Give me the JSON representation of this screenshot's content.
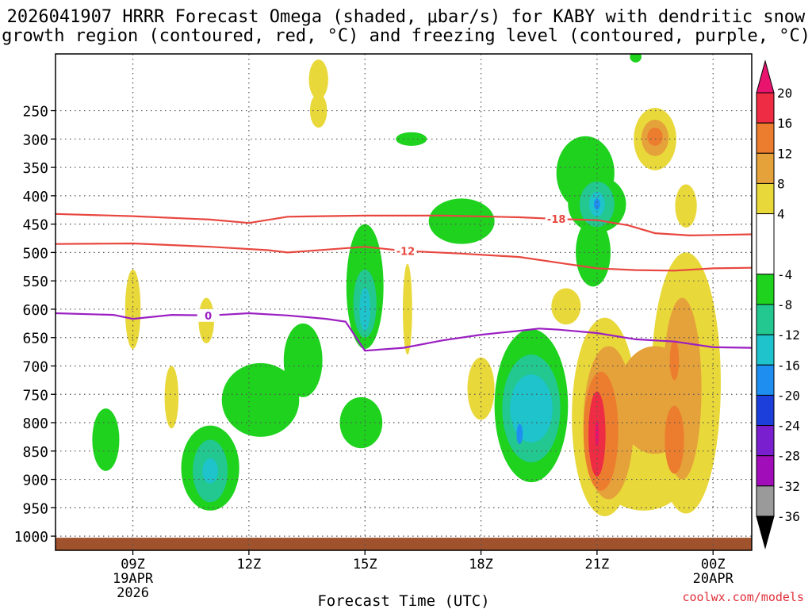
{
  "chart_data": {
    "type": "heatmap",
    "title_line1": "2026041907 HRRR Forecast Omega (shaded, μbar/s) for KABY with dendritic snow",
    "title_line2": "growth region (contoured, red, °C) and freezing level (contoured, purple, °C)",
    "xlabel": "Forecast Time (UTC)",
    "ylabel": "",
    "credit": "coolwx.com/models",
    "x_range_hours": [
      7,
      25
    ],
    "y_range_hpa": [
      1025,
      150
    ],
    "x_ticks": [
      {
        "hour": 9,
        "lines": [
          "09Z",
          "19APR",
          "2026"
        ]
      },
      {
        "hour": 12,
        "lines": [
          "12Z"
        ]
      },
      {
        "hour": 15,
        "lines": [
          "15Z"
        ]
      },
      {
        "hour": 18,
        "lines": [
          "18Z"
        ]
      },
      {
        "hour": 21,
        "lines": [
          "21Z"
        ]
      },
      {
        "hour": 24,
        "lines": [
          "00Z",
          "20APR"
        ]
      }
    ],
    "y_ticks": [
      250,
      300,
      350,
      400,
      450,
      500,
      550,
      600,
      650,
      700,
      750,
      800,
      850,
      900,
      950,
      1000
    ],
    "colorbar": {
      "ticks": [
        20,
        16,
        12,
        8,
        4,
        -4,
        -8,
        -12,
        -16,
        -20,
        -24,
        -28,
        -32,
        -36
      ],
      "bins": [
        {
          "lo": 16,
          "hi": 20,
          "color": "#ee2c44"
        },
        {
          "lo": 12,
          "hi": 16,
          "color": "#ec7d2e"
        },
        {
          "lo": 8,
          "hi": 12,
          "color": "#e5a13a"
        },
        {
          "lo": 4,
          "hi": 8,
          "color": "#e9d83a"
        },
        {
          "lo": -4,
          "hi": 4,
          "color": "#ffffff"
        },
        {
          "lo": -8,
          "hi": -4,
          "color": "#1ed21e"
        },
        {
          "lo": -12,
          "hi": -8,
          "color": "#22c890"
        },
        {
          "lo": -16,
          "hi": -12,
          "color": "#1ec3cc"
        },
        {
          "lo": -20,
          "hi": -16,
          "color": "#1e8ff0"
        },
        {
          "lo": -24,
          "hi": -20,
          "color": "#1c3fdc"
        },
        {
          "lo": -28,
          "hi": -24,
          "color": "#7a1fcf"
        },
        {
          "lo": -32,
          "hi": -28,
          "color": "#a20dba"
        },
        {
          "lo": -36,
          "hi": -32,
          "color": "#9a9a9a"
        }
      ],
      "over_color": "#e8146e",
      "under_color": "#000000"
    },
    "omega_blobs": [
      {
        "hour": 13.8,
        "hpa": 195,
        "rx_h": 0.25,
        "ry_hpa": 35,
        "color": "#e9d83a"
      },
      {
        "hour": 13.8,
        "hpa": 250,
        "rx_h": 0.22,
        "ry_hpa": 30,
        "color": "#e9d83a"
      },
      {
        "hour": 16.2,
        "hpa": 300,
        "rx_h": 0.4,
        "ry_hpa": 12,
        "color": "#1ed21e"
      },
      {
        "hour": 22.5,
        "hpa": 300,
        "rx_h": 0.55,
        "ry_hpa": 55,
        "color": "#e9d83a"
      },
      {
        "hour": 22.5,
        "hpa": 298,
        "rx_h": 0.35,
        "ry_hpa": 32,
        "color": "#e5a13a"
      },
      {
        "hour": 22.5,
        "hpa": 296,
        "rx_h": 0.2,
        "ry_hpa": 16,
        "color": "#ec7d2e"
      },
      {
        "hour": 23.3,
        "hpa": 418,
        "rx_h": 0.28,
        "ry_hpa": 38,
        "color": "#e9d83a"
      },
      {
        "hour": 20.7,
        "hpa": 360,
        "rx_h": 0.75,
        "ry_hpa": 65,
        "color": "#1ed21e"
      },
      {
        "hour": 21.0,
        "hpa": 415,
        "rx_h": 0.75,
        "ry_hpa": 50,
        "color": "#1ed21e"
      },
      {
        "hour": 20.9,
        "hpa": 500,
        "rx_h": 0.45,
        "ry_hpa": 60,
        "color": "#1ed21e"
      },
      {
        "hour": 21.0,
        "hpa": 415,
        "rx_h": 0.45,
        "ry_hpa": 40,
        "color": "#22c890"
      },
      {
        "hour": 21.0,
        "hpa": 415,
        "rx_h": 0.2,
        "ry_hpa": 22,
        "color": "#1ec3cc"
      },
      {
        "hour": 21.0,
        "hpa": 415,
        "rx_h": 0.08,
        "ry_hpa": 10,
        "color": "#1e8ff0"
      },
      {
        "hour": 17.5,
        "hpa": 445,
        "rx_h": 0.85,
        "ry_hpa": 40,
        "color": "#1ed21e"
      },
      {
        "hour": 20.2,
        "hpa": 595,
        "rx_h": 0.38,
        "ry_hpa": 32,
        "color": "#e9d83a"
      },
      {
        "hour": 15.0,
        "hpa": 560,
        "rx_h": 0.48,
        "ry_hpa": 110,
        "color": "#1ed21e"
      },
      {
        "hour": 15.0,
        "hpa": 590,
        "rx_h": 0.3,
        "ry_hpa": 60,
        "color": "#22c890"
      },
      {
        "hour": 15.0,
        "hpa": 600,
        "rx_h": 0.14,
        "ry_hpa": 38,
        "color": "#1ec3cc"
      },
      {
        "hour": 16.1,
        "hpa": 600,
        "rx_h": 0.12,
        "ry_hpa": 80,
        "color": "#e9d83a"
      },
      {
        "hour": 14.9,
        "hpa": 800,
        "rx_h": 0.55,
        "ry_hpa": 45,
        "color": "#1ed21e"
      },
      {
        "hour": 9.0,
        "hpa": 600,
        "rx_h": 0.2,
        "ry_hpa": 70,
        "color": "#e9d83a"
      },
      {
        "hour": 10.9,
        "hpa": 620,
        "rx_h": 0.2,
        "ry_hpa": 40,
        "color": "#e9d83a"
      },
      {
        "hour": 10.0,
        "hpa": 755,
        "rx_h": 0.18,
        "ry_hpa": 55,
        "color": "#e9d83a"
      },
      {
        "hour": 8.3,
        "hpa": 830,
        "rx_h": 0.35,
        "ry_hpa": 55,
        "color": "#1ed21e"
      },
      {
        "hour": 11.0,
        "hpa": 880,
        "rx_h": 0.75,
        "ry_hpa": 75,
        "color": "#1ed21e"
      },
      {
        "hour": 12.3,
        "hpa": 760,
        "rx_h": 1.0,
        "ry_hpa": 65,
        "color": "#1ed21e"
      },
      {
        "hour": 13.4,
        "hpa": 690,
        "rx_h": 0.5,
        "ry_hpa": 65,
        "color": "#1ed21e"
      },
      {
        "hour": 11.0,
        "hpa": 885,
        "rx_h": 0.45,
        "ry_hpa": 55,
        "color": "#22c890"
      },
      {
        "hour": 11.0,
        "hpa": 885,
        "rx_h": 0.2,
        "ry_hpa": 22,
        "color": "#1ec3cc"
      },
      {
        "hour": 18.0,
        "hpa": 740,
        "rx_h": 0.35,
        "ry_hpa": 55,
        "color": "#e9d83a"
      },
      {
        "hour": 19.3,
        "hpa": 770,
        "rx_h": 0.95,
        "ry_hpa": 135,
        "color": "#1ed21e"
      },
      {
        "hour": 19.3,
        "hpa": 775,
        "rx_h": 0.75,
        "ry_hpa": 95,
        "color": "#22c890"
      },
      {
        "hour": 19.3,
        "hpa": 775,
        "rx_h": 0.55,
        "ry_hpa": 60,
        "color": "#1ec3cc"
      },
      {
        "hour": 19.0,
        "hpa": 820,
        "rx_h": 0.08,
        "ry_hpa": 18,
        "color": "#1e8ff0"
      },
      {
        "hour": 21.2,
        "hpa": 790,
        "rx_h": 0.85,
        "ry_hpa": 175,
        "color": "#e9d83a"
      },
      {
        "hour": 23.3,
        "hpa": 730,
        "rx_h": 0.9,
        "ry_hpa": 230,
        "color": "#e9d83a"
      },
      {
        "hour": 22.2,
        "hpa": 880,
        "rx_h": 1.2,
        "ry_hpa": 75,
        "color": "#e9d83a"
      },
      {
        "hour": 21.3,
        "hpa": 800,
        "rx_h": 0.65,
        "ry_hpa": 135,
        "color": "#e5a13a"
      },
      {
        "hour": 22.5,
        "hpa": 760,
        "rx_h": 1.0,
        "ry_hpa": 95,
        "color": "#e5a13a"
      },
      {
        "hour": 23.2,
        "hpa": 740,
        "rx_h": 0.5,
        "ry_hpa": 160,
        "color": "#e5a13a"
      },
      {
        "hour": 21.1,
        "hpa": 815,
        "rx_h": 0.45,
        "ry_hpa": 105,
        "color": "#ec7d2e"
      },
      {
        "hour": 23.0,
        "hpa": 830,
        "rx_h": 0.25,
        "ry_hpa": 60,
        "color": "#ec7d2e"
      },
      {
        "hour": 23.0,
        "hpa": 690,
        "rx_h": 0.12,
        "ry_hpa": 35,
        "color": "#ec7d2e"
      },
      {
        "hour": 21.0,
        "hpa": 820,
        "rx_h": 0.22,
        "ry_hpa": 75,
        "color": "#ee2c44"
      },
      {
        "hour": 21.0,
        "hpa": 820,
        "rx_h": 0.05,
        "ry_hpa": 22,
        "color": "#e8146e"
      },
      {
        "hour": 22.0,
        "hpa": 155,
        "rx_h": 0.15,
        "ry_hpa": 10,
        "color": "#1ed21e"
      }
    ],
    "contours": [
      {
        "name": "-18C isotherm",
        "label": "-18",
        "label_hour": 19.95,
        "color": "#e8473f",
        "points": [
          [
            7,
            432
          ],
          [
            9,
            436
          ],
          [
            11,
            442
          ],
          [
            12,
            448
          ],
          [
            13,
            437
          ],
          [
            15,
            435
          ],
          [
            17,
            435
          ],
          [
            19,
            438
          ],
          [
            20,
            441
          ],
          [
            21,
            443
          ],
          [
            21.8,
            452
          ],
          [
            22.5,
            466
          ],
          [
            23.4,
            470
          ],
          [
            25,
            468
          ]
        ]
      },
      {
        "name": "-12C isotherm",
        "label": "-12",
        "label_hour": 16.05,
        "color": "#e8473f",
        "points": [
          [
            7,
            485
          ],
          [
            9,
            484
          ],
          [
            11,
            490
          ],
          [
            12.5,
            496
          ],
          [
            13,
            500
          ],
          [
            14,
            495
          ],
          [
            15,
            490
          ],
          [
            16,
            497
          ],
          [
            17.5,
            502
          ],
          [
            19,
            508
          ],
          [
            20,
            518
          ],
          [
            21,
            528
          ],
          [
            22,
            531
          ],
          [
            23,
            532
          ],
          [
            24,
            528
          ],
          [
            25,
            527
          ]
        ]
      },
      {
        "name": "0C freezing level",
        "label": "0",
        "label_hour": 10.95,
        "color": "#9b1fc2",
        "points": [
          [
            7,
            607
          ],
          [
            8.5,
            610
          ],
          [
            9,
            617
          ],
          [
            10,
            610
          ],
          [
            11,
            611
          ],
          [
            12,
            607
          ],
          [
            13,
            611
          ],
          [
            14,
            617
          ],
          [
            14.5,
            622
          ],
          [
            15,
            673
          ],
          [
            16,
            668
          ],
          [
            17,
            655
          ],
          [
            18,
            645
          ],
          [
            19,
            638
          ],
          [
            19.5,
            634
          ],
          [
            20,
            636
          ],
          [
            21,
            642
          ],
          [
            22,
            653
          ],
          [
            23,
            657
          ],
          [
            24,
            667
          ],
          [
            25,
            668
          ]
        ]
      }
    ],
    "ground_hpa": 1000
  }
}
